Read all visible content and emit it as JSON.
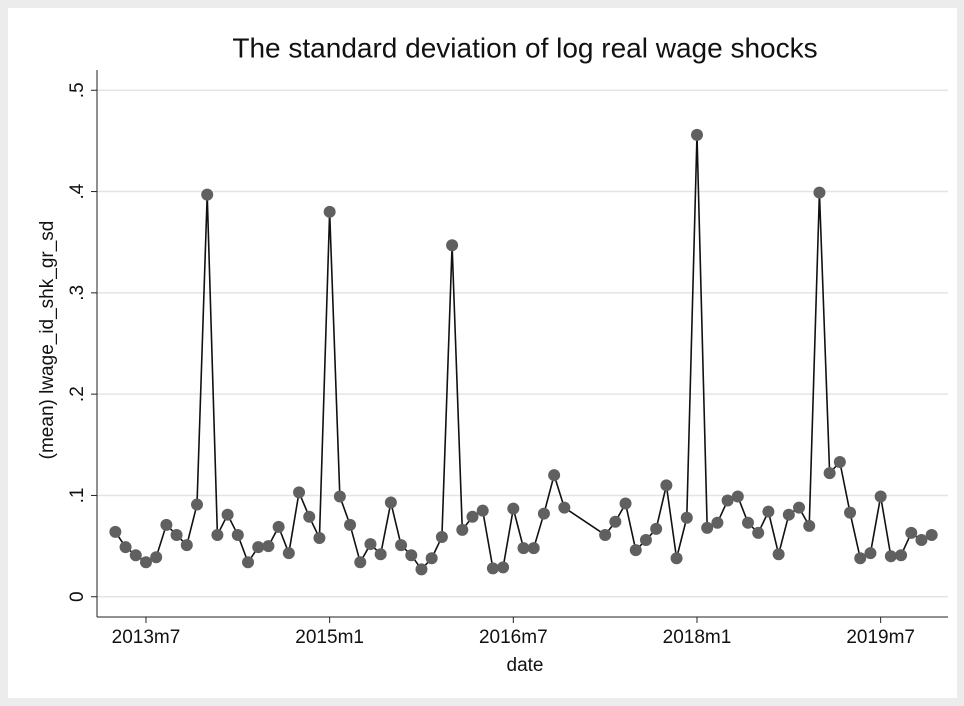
{
  "chart_data": {
    "type": "line",
    "title": "The standard deviation of log real wage shocks",
    "xlabel": "date",
    "ylabel": "(mean) lwage_id_shk_gr_sd",
    "x": [
      639,
      640,
      641,
      642,
      643,
      644,
      645,
      646,
      647,
      648,
      649,
      650,
      651,
      652,
      653,
      654,
      655,
      656,
      657,
      658,
      659,
      660,
      661,
      662,
      663,
      664,
      665,
      666,
      667,
      668,
      669,
      670,
      671,
      672,
      673,
      674,
      675,
      676,
      677,
      678,
      679,
      680,
      681,
      682,
      683,
      687,
      688,
      689,
      690,
      691,
      692,
      693,
      694,
      695,
      696,
      697,
      698,
      699,
      700,
      701,
      702,
      703,
      704,
      705,
      706,
      707,
      708,
      709,
      710,
      711,
      712,
      713,
      714,
      715,
      716,
      717,
      718,
      719
    ],
    "series": [
      {
        "name": "(mean) lwage_id_shk_gr_sd",
        "color": "#606060",
        "values": [
          0.064,
          0.049,
          0.041,
          0.034,
          0.039,
          0.071,
          0.061,
          0.051,
          0.091,
          0.397,
          0.061,
          0.081,
          0.061,
          0.034,
          0.049,
          0.05,
          0.069,
          0.043,
          0.103,
          0.079,
          0.058,
          0.38,
          0.099,
          0.071,
          0.034,
          0.052,
          0.042,
          0.093,
          0.051,
          0.041,
          0.027,
          0.038,
          0.059,
          0.347,
          0.066,
          0.079,
          0.085,
          0.028,
          0.029,
          0.087,
          0.048,
          0.048,
          0.082,
          0.12,
          0.088,
          0.061,
          0.074,
          0.092,
          0.046,
          0.056,
          0.067,
          0.11,
          0.038,
          0.078,
          0.456,
          0.068,
          0.073,
          0.095,
          0.099,
          0.073,
          0.063,
          0.084,
          0.042,
          0.081,
          0.088,
          0.07,
          0.399,
          0.122,
          0.133,
          0.083,
          0.038,
          0.043,
          0.099,
          0.04,
          0.041,
          0.063,
          0.056,
          0.061
        ]
      }
    ],
    "xlim": [
      637.2,
      720.6
    ],
    "ylim": [
      -0.02,
      0.52
    ],
    "xticks": [
      {
        "value": 642,
        "label": "2013m7"
      },
      {
        "value": 660,
        "label": "2015m1"
      },
      {
        "value": 678,
        "label": "2016m7"
      },
      {
        "value": 696,
        "label": "2018m1"
      },
      {
        "value": 714,
        "label": "2019m7"
      }
    ],
    "yticks": [
      0,
      {
        "value": 0.1,
        "label": ".1"
      },
      {
        "value": 0.2,
        "label": ".2"
      },
      {
        "value": 0.3,
        "label": ".3"
      },
      {
        "value": 0.4,
        "label": ".4"
      },
      {
        "value": 0.5,
        "label": ".5"
      }
    ],
    "grid": true
  }
}
